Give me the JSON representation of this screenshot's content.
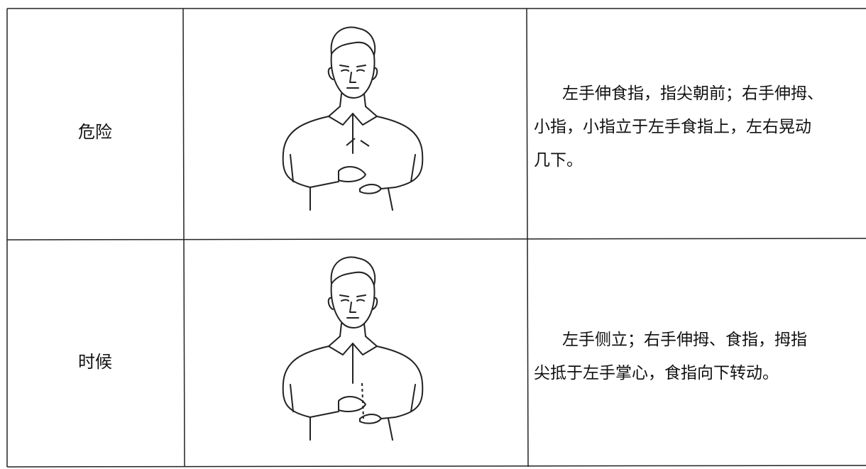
{
  "rows": [
    {
      "word": "危险",
      "description": [
        "左手伸食指，指尖朝前；右手伸拇、",
        "小指，小指立于左手食指上，左右晃动",
        "几下。"
      ]
    },
    {
      "word": "时候",
      "description": [
        "左手侧立；右手伸拇、食指，拇指",
        "尖抵于左手掌心，食指向下转动。"
      ]
    }
  ]
}
